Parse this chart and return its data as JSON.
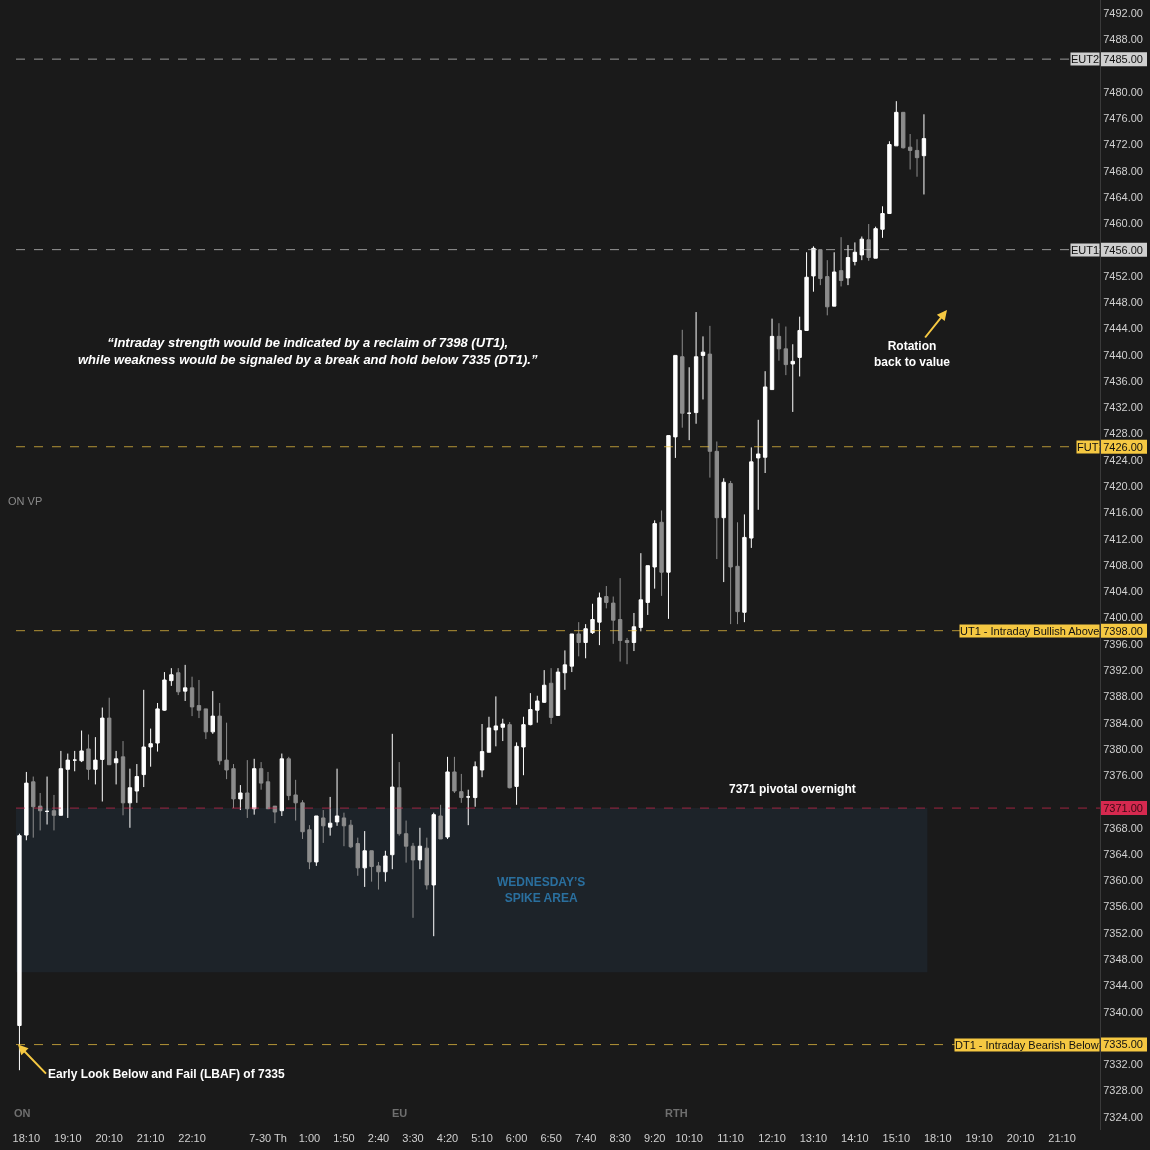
{
  "chart_data": {
    "type": "candlestick",
    "categories": [
      null,
      "18:10",
      null,
      null,
      null,
      null,
      null,
      "19:10",
      null,
      null,
      null,
      null,
      null,
      "20:10",
      null,
      null,
      null,
      null,
      null,
      "21:10",
      null,
      null,
      null,
      null,
      null,
      "22:10",
      null,
      null,
      null,
      null,
      null,
      null,
      null,
      null,
      null,
      null,
      "7-30 Th",
      null,
      null,
      null,
      null,
      null,
      "1:00",
      null,
      null,
      null,
      null,
      "1:50",
      null,
      null,
      null,
      null,
      "2:40",
      null,
      null,
      null,
      null,
      "3:30",
      null,
      null,
      null,
      null,
      "4:20",
      null,
      null,
      null,
      null,
      "5:10",
      null,
      null,
      null,
      null,
      "6:00",
      null,
      null,
      null,
      null,
      "6:50",
      null,
      null,
      null,
      null,
      "7:40",
      null,
      null,
      null,
      null,
      "8:30",
      null,
      null,
      null,
      null,
      "9:20",
      null,
      null,
      null,
      null,
      "10:10",
      null,
      null,
      null,
      null,
      null,
      "11:10",
      null,
      null,
      null,
      null,
      null,
      "12:10",
      null,
      null,
      null,
      null,
      null,
      "13:10",
      null,
      null,
      null,
      null,
      null,
      "14:10",
      null,
      null,
      null,
      null,
      null,
      "15:10",
      null,
      null,
      null,
      null,
      null,
      "18:10",
      null,
      null,
      null,
      null,
      null,
      "19:10",
      null,
      null,
      null,
      null,
      null,
      "20:10",
      null,
      null,
      null,
      null,
      null,
      "21:10",
      null,
      null,
      null,
      null,
      null
    ],
    "series": [
      {
        "color": "#ffffff",
        "ohlc": [
          [
            7337.9,
            7367.1,
            7331.1,
            7366.8
          ],
          [
            7366.9,
            7376.5,
            7366.1,
            7374.8
          ],
          null,
          null,
          [
            7370.5,
            7375.8,
            7368.5,
            7370.5
          ],
          null,
          [
            7369.9,
            7379.7,
            7369.9,
            7377.0
          ],
          [
            7376.9,
            7379.3,
            7369.5,
            7378.3
          ],
          [
            7378.3,
            7379.7,
            7376.6,
            7378.3
          ],
          [
            7378.2,
            7382.8,
            7378.0,
            7379.7
          ],
          null,
          [
            7376.9,
            7381.8,
            7374.6,
            7378.3
          ],
          [
            7378.4,
            7386.3,
            7372.0,
            7384.7
          ],
          null,
          [
            7377.9,
            7379.7,
            7374.6,
            7378.5
          ],
          null,
          [
            7371.8,
            7377.0,
            7368.0,
            7374.1
          ],
          [
            7373.6,
            7377.7,
            7371.8,
            7375.8
          ],
          [
            7376.1,
            7389.0,
            7374.2,
            7380.3
          ],
          [
            7380.3,
            7383.1,
            7377.3,
            7380.8
          ],
          [
            7380.9,
            7387.0,
            7379.6,
            7386.1
          ],
          [
            7385.9,
            7391.7,
            7385.8,
            7390.5
          ],
          [
            7390.4,
            7392.3,
            7389.6,
            7391.3
          ],
          null,
          [
            7388.8,
            7392.8,
            7387.3,
            7389.3
          ],
          null,
          null,
          null,
          [
            7382.6,
            7388.8,
            7382.3,
            7385.0
          ],
          null,
          null,
          null,
          [
            7372.4,
            7374.5,
            7370.7,
            7373.3
          ],
          null,
          [
            7370.9,
            7378.5,
            7370.0,
            7377.0
          ],
          null,
          null,
          null,
          [
            7370.6,
            7379.3,
            7369.8,
            7378.5
          ],
          null,
          null,
          null,
          null,
          [
            7362.8,
            7369.8,
            7362.2,
            7369.8
          ],
          null,
          [
            7368.1,
            7372.7,
            7366.8,
            7368.7
          ],
          [
            7368.9,
            7377.0,
            7368.3,
            7369.8
          ],
          null,
          null,
          null,
          [
            7361.9,
            7367.5,
            7359.0,
            7364.5
          ],
          null,
          null,
          [
            7361.3,
            7364.5,
            7359.8,
            7363.7
          ],
          [
            7363.9,
            7382.3,
            7361.7,
            7374.2
          ],
          null,
          null,
          null,
          [
            7363.1,
            7368.0,
            7361.7,
            7365.2
          ],
          null,
          [
            7359.3,
            7370.3,
            7351.5,
            7370.0
          ],
          null,
          [
            7366.6,
            7378.8,
            7366.3,
            7376.5
          ],
          null,
          null,
          [
            7372.7,
            7373.8,
            7368.4,
            7372.7
          ],
          [
            7372.6,
            7378.1,
            7371.2,
            7377.3
          ],
          [
            7376.8,
            7383.8,
            7375.7,
            7379.6
          ],
          [
            7379.5,
            7384.9,
            7379.5,
            7383.2
          ],
          [
            7382.9,
            7388.0,
            7380.4,
            7383.5
          ],
          [
            7383.3,
            7384.6,
            7381.2,
            7383.8
          ],
          null,
          [
            7374.3,
            7381.0,
            7371.5,
            7380.4
          ],
          [
            7380.3,
            7384.9,
            7376.0,
            7383.7
          ],
          [
            7383.7,
            7388.5,
            7383.6,
            7386.0
          ],
          [
            7385.9,
            7388.1,
            7384.0,
            7387.3
          ],
          [
            7387.1,
            7392.0,
            7387.0,
            7389.7
          ],
          null,
          [
            7385.1,
            7392.3,
            7385.1,
            7391.7
          ],
          [
            7391.6,
            7395.0,
            7389.0,
            7392.8
          ],
          [
            7392.6,
            7397.5,
            7391.7,
            7397.5
          ],
          null,
          [
            7396.2,
            7399.0,
            7393.8,
            7398.3
          ],
          [
            7397.7,
            7402.1,
            7397.5,
            7399.7
          ],
          [
            7399.3,
            7403.8,
            7395.8,
            7403.0
          ],
          null,
          null,
          null,
          null,
          [
            7396.2,
            7400.7,
            7394.9,
            7398.6
          ],
          [
            7398.5,
            7409.8,
            7397.9,
            7402.7
          ],
          [
            7402.3,
            7407.9,
            7400.4,
            7407.9
          ],
          [
            7407.7,
            7414.8,
            7404.4,
            7414.3
          ],
          null,
          [
            7406.9,
            7427.7,
            7399.8,
            7427.7
          ],
          [
            7427.5,
            7439.9,
            7424.3,
            7439.9
          ],
          null,
          [
            7431.1,
            7438.1,
            7427.0,
            7431.1
          ],
          [
            7431.2,
            7446.5,
            7429.5,
            7439.7
          ],
          [
            7439.9,
            7442.8,
            7433.2,
            7440.4
          ],
          null,
          null,
          [
            7415.2,
            7421.2,
            7405.4,
            7420.6
          ],
          null,
          null,
          [
            7400.8,
            7415.7,
            7399.3,
            7412.2
          ],
          [
            7412.1,
            7425.9,
            7410.6,
            7423.7
          ],
          [
            7424.3,
            7430.1,
            7416.4,
            7424.9
          ],
          [
            7424.4,
            7437.5,
            7422.0,
            7435.1
          ],
          [
            7434.7,
            7445.5,
            7434.7,
            7442.8
          ],
          null,
          null,
          [
            7438.6,
            7441.6,
            7431.3,
            7439.0
          ],
          [
            7439.6,
            7445.8,
            7436.7,
            7443.7
          ],
          [
            7443.7,
            7455.6,
            7443.7,
            7451.8
          ],
          [
            7452.0,
            7456.5,
            7449.6,
            7456.2
          ],
          null,
          null,
          [
            7447.4,
            7455.6,
            7447.4,
            7452.6
          ],
          null,
          [
            7451.7,
            7456.7,
            7450.6,
            7454.8
          ],
          [
            7454.2,
            7457.1,
            7453.6,
            7455.6
          ],
          [
            7455.2,
            7458.0,
            7454.4,
            7457.6
          ],
          null,
          [
            7454.7,
            7459.5,
            7454.7,
            7459.2
          ],
          [
            7459.1,
            7462.6,
            7457.8,
            7461.5
          ],
          [
            7461.5,
            7472.5,
            7461.5,
            7472.0
          ],
          [
            7471.8,
            7478.6,
            7471.8,
            7476.9
          ],
          null,
          null,
          null,
          [
            7470.3,
            7476.6,
            7464.4,
            7472.9
          ],
          null,
          null,
          null,
          null,
          null,
          null,
          null,
          null,
          null,
          null,
          null,
          null,
          null,
          null,
          null,
          null,
          null,
          null,
          null,
          null,
          null,
          null,
          null,
          null,
          null
        ]
      },
      {
        "color": "#8c8c8c",
        "ohlc": [
          null,
          null,
          [
            7375.0,
            7375.8,
            7366.5,
            7371.2
          ],
          [
            7371.3,
            7373.3,
            7367.6,
            7370.6
          ],
          null,
          [
            7370.6,
            7373.0,
            7367.6,
            7369.9
          ],
          null,
          null,
          null,
          null,
          [
            7380.0,
            7382.2,
            7375.3,
            7376.9
          ],
          null,
          null,
          [
            7384.7,
            7387.8,
            7377.6,
            7377.6
          ],
          null,
          [
            7378.8,
            7381.2,
            7369.9,
            7371.8
          ],
          null,
          null,
          null,
          null,
          null,
          null,
          null,
          [
            7391.6,
            7392.3,
            7388.2,
            7388.7
          ],
          null,
          [
            7389.3,
            7391.0,
            7385.0,
            7386.4
          ],
          [
            7386.6,
            7390.5,
            7384.7,
            7385.9
          ],
          [
            7386.1,
            7386.1,
            7381.5,
            7382.6
          ],
          null,
          [
            7385.0,
            7387.0,
            7377.6,
            7378.2
          ],
          [
            7378.3,
            7384.0,
            7375.4,
            7376.8
          ],
          [
            7377.0,
            7377.7,
            7371.0,
            7372.4
          ],
          null,
          [
            7373.3,
            7378.3,
            7369.5,
            7370.9
          ],
          null,
          [
            7377.0,
            7378.0,
            7373.8,
            7374.8
          ],
          [
            7375.0,
            7376.5,
            7370.9,
            7370.9
          ],
          [
            7371.3,
            7371.3,
            7368.7,
            7370.4
          ],
          null,
          [
            7378.5,
            7378.8,
            7372.2,
            7372.9
          ],
          [
            7373.0,
            7375.3,
            7369.1,
            7371.8
          ],
          [
            7371.8,
            7372.2,
            7366.3,
            7367.4
          ],
          [
            7367.7,
            7368.4,
            7361.7,
            7362.8
          ],
          null,
          [
            7369.5,
            7370.7,
            7365.7,
            7368.3
          ],
          null,
          null,
          [
            7369.5,
            7370.3,
            7365.2,
            7368.3
          ],
          [
            7368.4,
            7369.2,
            7364.9,
            7365.1
          ],
          [
            7365.6,
            7366.5,
            7360.7,
            7361.9
          ],
          null,
          [
            7364.5,
            7364.5,
            7359.8,
            7362.1
          ],
          [
            7362.2,
            7362.8,
            7358.6,
            7361.3
          ],
          null,
          null,
          [
            7374.1,
            7378.0,
            7366.8,
            7367.1
          ],
          [
            7367.1,
            7369.1,
            7362.7,
            7365.2
          ],
          [
            7365.2,
            7365.7,
            7354.3,
            7363.1
          ],
          null,
          [
            7364.9,
            7366.5,
            7358.6,
            7359.3
          ],
          null,
          [
            7369.8,
            7371.5,
            7366.3,
            7366.3
          ],
          null,
          [
            7376.5,
            7378.8,
            7373.3,
            7373.6
          ],
          [
            7373.5,
            7376.2,
            7371.8,
            7372.6
          ],
          null,
          null,
          null,
          null,
          null,
          null,
          [
            7383.7,
            7384.1,
            7374.0,
            7374.1
          ],
          null,
          null,
          null,
          null,
          null,
          [
            7390.0,
            7392.3,
            7383.8,
            7384.8
          ],
          null,
          null,
          null,
          [
            7397.5,
            7399.3,
            7394.1,
            7396.2
          ],
          null,
          null,
          null,
          [
            7403.2,
            7404.8,
            7401.4,
            7402.3
          ],
          [
            7402.2,
            7403.2,
            7396.0,
            7399.6
          ],
          [
            7399.7,
            7406.0,
            7393.3,
            7396.5
          ],
          [
            7396.5,
            7396.9,
            7392.9,
            7396.2
          ],
          null,
          null,
          null,
          null,
          [
            7414.5,
            7416.3,
            7403.3,
            7406.9
          ],
          null,
          null,
          [
            7439.7,
            7443.8,
            7428.9,
            7431.1
          ],
          null,
          null,
          null,
          [
            7440.1,
            7444.4,
            7421.3,
            7425.3
          ],
          [
            7425.3,
            7426.8,
            7408.9,
            7415.2
          ],
          null,
          [
            7420.4,
            7420.8,
            7399.0,
            7407.7
          ],
          [
            7407.8,
            7414.5,
            7399.0,
            7400.9
          ],
          null,
          null,
          null,
          null,
          null,
          [
            7442.8,
            7444.8,
            7439.1,
            7440.9
          ],
          [
            7440.9,
            7444.3,
            7436.9,
            7438.5
          ],
          null,
          null,
          null,
          null,
          [
            7456.0,
            7456.0,
            7450.6,
            7451.6
          ],
          [
            7451.9,
            7454.4,
            7446.0,
            7447.3
          ],
          null,
          [
            7452.8,
            7457.9,
            7450.4,
            7451.3
          ],
          null,
          null,
          null,
          [
            7457.5,
            7459.9,
            7454.3,
            7454.8
          ],
          null,
          null,
          null,
          null,
          [
            7476.9,
            7476.9,
            7471.4,
            7471.5
          ],
          [
            7471.6,
            7473.6,
            7468.2,
            7471.1
          ],
          [
            7471.1,
            7472.8,
            7467.1,
            7470.0
          ],
          null,
          null,
          null,
          null,
          null,
          null,
          null,
          null,
          null,
          null,
          null,
          null,
          null,
          null,
          null,
          null,
          null,
          null,
          null,
          null,
          null,
          null,
          null,
          null,
          null,
          null
        ]
      }
    ],
    "ylim": [
      7322,
      7494
    ],
    "yticks": [
      {
        "value": 7324,
        "label": "7324.00"
      },
      {
        "value": 7328,
        "label": "7328.00"
      },
      {
        "value": 7332,
        "label": "7332.00"
      },
      {
        "value": 7335,
        "label": "7335.00"
      },
      {
        "value": 7340,
        "label": "7340.00"
      },
      {
        "value": 7344,
        "label": "7344.00"
      },
      {
        "value": 7348,
        "label": "7348.00"
      },
      {
        "value": 7352,
        "label": "7352.00"
      },
      {
        "value": 7356,
        "label": "7356.00"
      },
      {
        "value": 7360,
        "label": "7360.00"
      },
      {
        "value": 7364,
        "label": "7364.00"
      },
      {
        "value": 7368,
        "label": "7368.00"
      },
      {
        "value": 7371,
        "label": "7371.00"
      },
      {
        "value": 7376,
        "label": "7376.00"
      },
      {
        "value": 7380,
        "label": "7380.00"
      },
      {
        "value": 7384,
        "label": "7384.00"
      },
      {
        "value": 7388,
        "label": "7388.00"
      },
      {
        "value": 7392,
        "label": "7392.00"
      },
      {
        "value": 7396,
        "label": "7396.00"
      },
      {
        "value": 7398,
        "label": "7398.00"
      },
      {
        "value": 7400,
        "label": "7400.00"
      },
      {
        "value": 7404,
        "label": "7404.00"
      },
      {
        "value": 7408,
        "label": "7408.00"
      },
      {
        "value": 7412,
        "label": "7412.00"
      },
      {
        "value": 7416,
        "label": "7416.00"
      },
      {
        "value": 7420,
        "label": "7420.00"
      },
      {
        "value": 7424,
        "label": "7424.00"
      },
      {
        "value": 7426,
        "label": "7426.00"
      },
      {
        "value": 7428,
        "label": "7428.00"
      },
      {
        "value": 7432,
        "label": "7432.00"
      },
      {
        "value": 7436,
        "label": "7436.00"
      },
      {
        "value": 7440,
        "label": "7440.00"
      },
      {
        "value": 7444,
        "label": "7444.00"
      },
      {
        "value": 7448,
        "label": "7448.00"
      },
      {
        "value": 7452,
        "label": "7452.00"
      },
      {
        "value": 7456,
        "label": "7456.00"
      },
      {
        "value": 7460,
        "label": "7460.00"
      },
      {
        "value": 7464,
        "label": "7464.00"
      },
      {
        "value": 7468,
        "label": "7468.00"
      },
      {
        "value": 7472,
        "label": "7472.00"
      },
      {
        "value": 7476,
        "label": "7476.00"
      },
      {
        "value": 7480,
        "label": "7480.00"
      },
      {
        "value": 7485,
        "label": "7485.00"
      },
      {
        "value": 7488,
        "label": "7488.00"
      },
      {
        "value": 7492,
        "label": "7492.00"
      }
    ],
    "ref_lines": [
      {
        "axis": "y",
        "value": 7485,
        "label": "EUT2",
        "color": "#cfcfcf",
        "line_style": "dashed"
      },
      {
        "axis": "y",
        "value": 7456,
        "label": "EUT1",
        "color": "#cfcfcf",
        "line_style": "dashed"
      },
      {
        "axis": "y",
        "value": 7426,
        "label": "FUT",
        "color": "#f5c842",
        "line_style": "dashed"
      },
      {
        "axis": "y",
        "value": 7398,
        "label": "UT1 - Intraday Bullish Above",
        "color": "#f5c842",
        "line_style": "dashed"
      },
      {
        "axis": "y",
        "value": 7371,
        "color": "#d6294f",
        "line_style": "dashed"
      },
      {
        "axis": "y",
        "value": 7335,
        "label": "DT1 - Intraday Bearish Below",
        "color": "#f5c842",
        "line_style": "dashed"
      }
    ],
    "bands": [
      {
        "axis": "y",
        "from": 7346,
        "to": 7371,
        "label": "WEDNESDAY’S\nSPIKE AREA",
        "color": "#1d2329"
      }
    ],
    "annotations": [
      "“Intraday strength would be indicated by a reclaim of 7398 (UT1),\nwhile weakness would be signaled by a break and hold below 7335 (DT1).”",
      "Rotation\nback to value",
      "7371 pivotal overnight",
      {
        "text": "Early Look Below and Fail (LBAF) of 7335",
        "y": 7335
      },
      "ON VP",
      "ON",
      "EU",
      "RTH"
    ],
    "grid": false
  }
}
